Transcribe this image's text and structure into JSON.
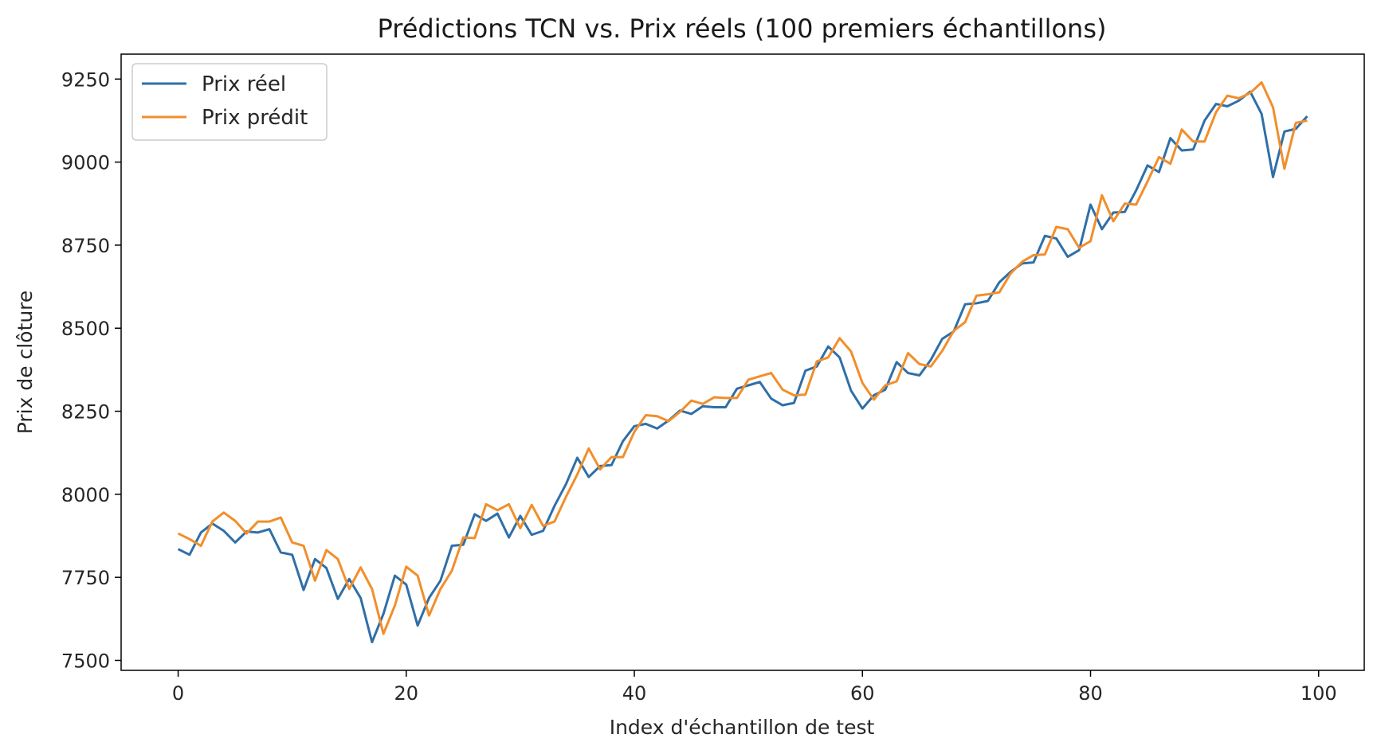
{
  "chart_data": {
    "type": "line",
    "title": "Prédictions TCN vs. Prix réels (100 premiers échantillons)",
    "xlabel": "Index d'échantillon de test",
    "ylabel": "Prix de clôture",
    "xlim": [
      -5,
      104
    ],
    "ylim": [
      7470,
      9325
    ],
    "xticks": [
      0,
      20,
      40,
      60,
      80,
      100
    ],
    "yticks": [
      7500,
      7750,
      8000,
      8250,
      8500,
      8750,
      9000,
      9250
    ],
    "grid": false,
    "legend_position": "upper-left",
    "series": [
      {
        "name": "Prix réel",
        "color": "#2f6fa8",
        "values": [
          7835,
          7818,
          7885,
          7912,
          7890,
          7855,
          7888,
          7885,
          7895,
          7825,
          7818,
          7712,
          7805,
          7778,
          7685,
          7745,
          7688,
          7555,
          7640,
          7755,
          7728,
          7605,
          7688,
          7740,
          7845,
          7848,
          7940,
          7920,
          7942,
          7870,
          7935,
          7878,
          7890,
          7965,
          8030,
          8110,
          8052,
          8085,
          8088,
          8160,
          8205,
          8212,
          8198,
          8222,
          8252,
          8242,
          8265,
          8262,
          8262,
          8318,
          8328,
          8338,
          8288,
          8268,
          8275,
          8372,
          8385,
          8445,
          8412,
          8312,
          8258,
          8298,
          8315,
          8398,
          8365,
          8358,
          8405,
          8468,
          8490,
          8572,
          8575,
          8582,
          8638,
          8670,
          8695,
          8698,
          8778,
          8770,
          8715,
          8735,
          8872,
          8798,
          8848,
          8850,
          8915,
          8990,
          8970,
          9072,
          9035,
          9038,
          9125,
          9175,
          9168,
          9185,
          9212,
          9145,
          8955,
          9092,
          9100,
          9138
        ]
      },
      {
        "name": "Prix prédit",
        "color": "#f28e2b",
        "values": [
          7882,
          7865,
          7845,
          7918,
          7945,
          7920,
          7882,
          7918,
          7918,
          7930,
          7855,
          7845,
          7740,
          7832,
          7805,
          7715,
          7780,
          7715,
          7580,
          7665,
          7782,
          7755,
          7635,
          7715,
          7770,
          7870,
          7868,
          7970,
          7952,
          7970,
          7898,
          7968,
          7905,
          7918,
          7992,
          8060,
          8138,
          8075,
          8112,
          8112,
          8188,
          8238,
          8235,
          8220,
          8248,
          8282,
          8272,
          8292,
          8290,
          8290,
          8345,
          8355,
          8365,
          8315,
          8298,
          8300,
          8400,
          8412,
          8470,
          8430,
          8335,
          8285,
          8328,
          8340,
          8425,
          8392,
          8385,
          8432,
          8492,
          8518,
          8598,
          8602,
          8608,
          8665,
          8700,
          8720,
          8722,
          8805,
          8798,
          8742,
          8762,
          8900,
          8822,
          8875,
          8872,
          8942,
          9015,
          8995,
          9098,
          9062,
          9062,
          9150,
          9200,
          9192,
          9208,
          9240,
          9165,
          8980,
          9118,
          9125
        ]
      }
    ]
  }
}
